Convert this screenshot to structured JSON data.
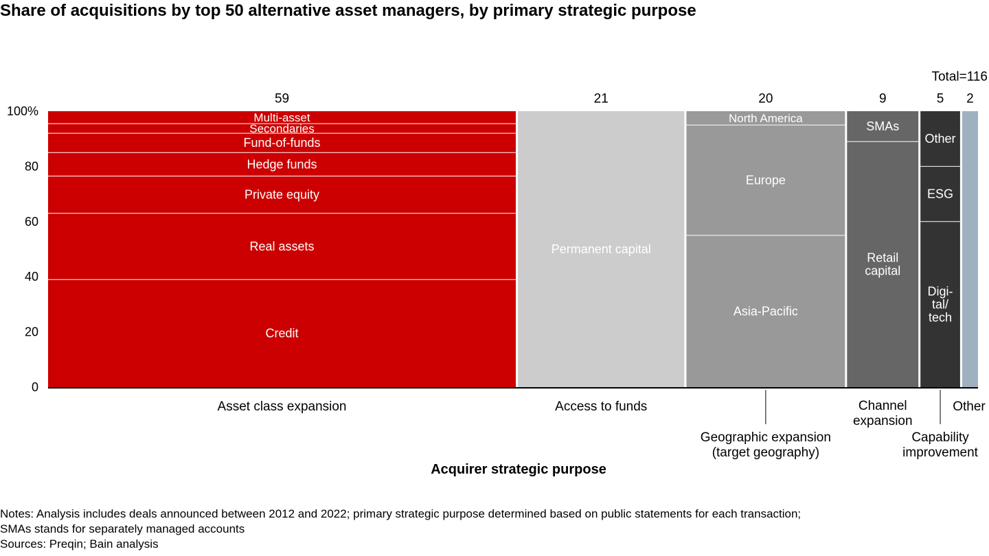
{
  "title": "Share of acquisitions by top 50 alternative asset managers, by primary strategic purpose",
  "chart_data": {
    "type": "marimekko",
    "total_label": "Total=116",
    "y_ticks": [
      "100%",
      "80",
      "60",
      "40",
      "20",
      "0"
    ],
    "y_range": [
      0,
      100
    ],
    "xlabel": "Acquirer strategic purpose",
    "columns": [
      {
        "count": 59,
        "count_label": "59",
        "category": "Asset class expansion",
        "color": "#cc0000",
        "segments": [
          {
            "label": "Credit",
            "share": 39
          },
          {
            "label": "Real assets",
            "share": 24
          },
          {
            "label": "Private equity",
            "share": 13.5
          },
          {
            "label": "Hedge funds",
            "share": 8.5
          },
          {
            "label": "Fund-of-funds",
            "share": 7
          },
          {
            "label": "Secondaries",
            "share": 3.5
          },
          {
            "label": "Multi-asset",
            "share": 4.5
          }
        ]
      },
      {
        "count": 21,
        "count_label": "21",
        "category": "Access to funds",
        "color": "#cccccc",
        "segments": [
          {
            "label": "Permanent capital",
            "share": 100
          }
        ]
      },
      {
        "count": 20,
        "count_label": "20",
        "category": "Geographic expansion\n(target geography)",
        "color": "#999999",
        "segments": [
          {
            "label": "Asia-Pacific",
            "share": 55
          },
          {
            "label": "Europe",
            "share": 40
          },
          {
            "label": "North America",
            "share": 5
          }
        ]
      },
      {
        "count": 9,
        "count_label": "9",
        "category": "Channel\nexpansion",
        "color": "#666666",
        "segments": [
          {
            "label": "Retail\ncapital",
            "share": 89
          },
          {
            "label": "SMAs",
            "share": 11
          }
        ]
      },
      {
        "count": 5,
        "count_label": "5",
        "category": "Capability\nimprovement",
        "color": "#333333",
        "segments": [
          {
            "label": "Digi-\ntal/\ntech",
            "share": 60
          },
          {
            "label": "ESG",
            "share": 20
          },
          {
            "label": "Other",
            "share": 20
          }
        ]
      },
      {
        "count": 2,
        "count_label": "2",
        "category": "Other",
        "color": "#9fb1c0",
        "segments": [
          {
            "label": "",
            "share": 100
          }
        ]
      }
    ]
  },
  "notes": [
    "Notes: Analysis includes deals announced between 2012 and 2022; primary strategic purpose determined based on public statements for each transaction;",
    "SMAs stands for separately managed accounts",
    "Sources: Preqin; Bain analysis"
  ]
}
